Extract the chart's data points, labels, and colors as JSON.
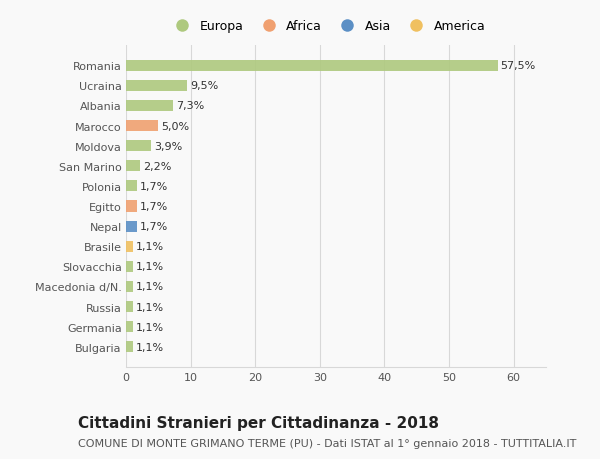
{
  "countries": [
    "Bulgaria",
    "Germania",
    "Russia",
    "Macedonia d/N.",
    "Slovacchia",
    "Brasile",
    "Nepal",
    "Egitto",
    "Polonia",
    "San Marino",
    "Moldova",
    "Marocco",
    "Albania",
    "Ucraina",
    "Romania"
  ],
  "values": [
    1.1,
    1.1,
    1.1,
    1.1,
    1.1,
    1.1,
    1.7,
    1.7,
    1.7,
    2.2,
    3.9,
    5.0,
    7.3,
    9.5,
    57.5
  ],
  "labels": [
    "1,1%",
    "1,1%",
    "1,1%",
    "1,1%",
    "1,1%",
    "1,1%",
    "1,7%",
    "1,7%",
    "1,7%",
    "2,2%",
    "3,9%",
    "5,0%",
    "7,3%",
    "9,5%",
    "57,5%"
  ],
  "colors": [
    "#aec97e",
    "#aec97e",
    "#aec97e",
    "#aec97e",
    "#aec97e",
    "#f0c060",
    "#5b8fc5",
    "#f0a070",
    "#aec97e",
    "#aec97e",
    "#aec97e",
    "#f0a070",
    "#aec97e",
    "#aec97e",
    "#aec97e"
  ],
  "legend_labels": [
    "Europa",
    "Africa",
    "Asia",
    "America"
  ],
  "legend_colors": [
    "#aec97e",
    "#f0a070",
    "#5b8fc5",
    "#f0c060"
  ],
  "title": "Cittadini Stranieri per Cittadinanza - 2018",
  "subtitle": "COMUNE DI MONTE GRIMANO TERME (PU) - Dati ISTAT al 1° gennaio 2018 - TUTTITALIA.IT",
  "xlim": [
    0,
    65
  ],
  "xticks": [
    0,
    10,
    20,
    30,
    40,
    50,
    60
  ],
  "bg_color": "#f9f9f9",
  "grid_color": "#d8d8d8",
  "title_fontsize": 11,
  "subtitle_fontsize": 8,
  "bar_label_fontsize": 8,
  "tick_fontsize": 8,
  "legend_fontsize": 9
}
